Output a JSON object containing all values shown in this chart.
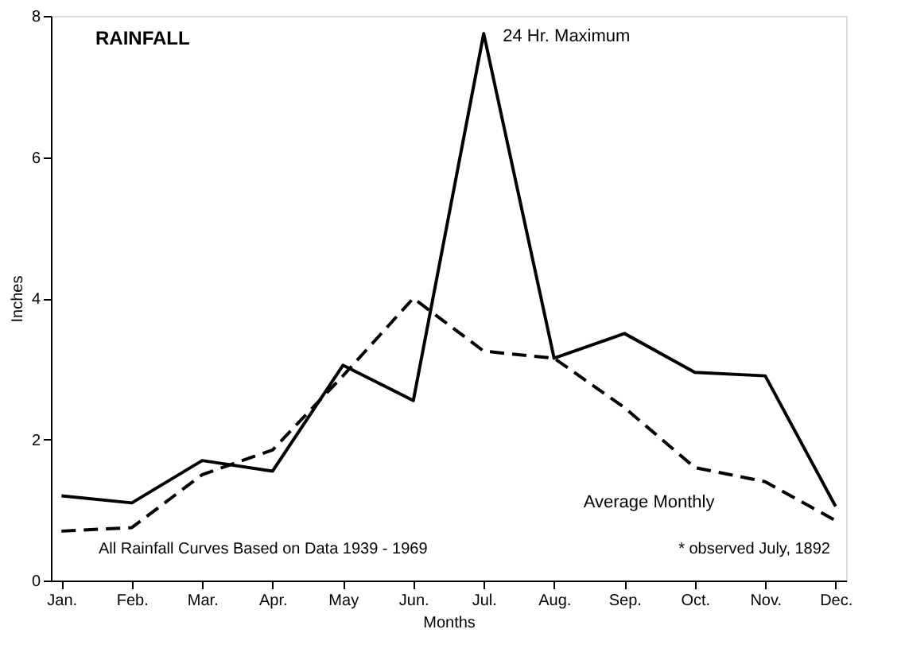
{
  "chart_data": {
    "type": "line",
    "title": "RAINFALL",
    "xlabel": "Months",
    "ylabel": "Inches",
    "categories": [
      "Jan.",
      "Feb.",
      "Mar.",
      "Apr.",
      "May",
      "Jun.",
      "Jul.",
      "Aug.",
      "Sep.",
      "Oct.",
      "Nov.",
      "Dec."
    ],
    "series": [
      {
        "name": "24 Hr. Maximum",
        "color": "#000000",
        "line_style": "solid",
        "values": [
          1.2,
          1.1,
          1.7,
          1.55,
          3.05,
          2.55,
          7.75,
          3.15,
          3.5,
          2.95,
          2.9,
          1.05
        ]
      },
      {
        "name": "Average Monthly",
        "color": "#000000",
        "line_style": "dashed",
        "values": [
          0.7,
          0.75,
          1.5,
          1.85,
          2.9,
          4.0,
          3.25,
          3.15,
          2.45,
          1.6,
          1.4,
          0.85
        ]
      }
    ],
    "ylim": [
      0,
      8
    ],
    "yticks": [
      0,
      2,
      4,
      6,
      8
    ],
    "grid": false,
    "legend": false,
    "marker": "none",
    "annotations": [
      "All Rainfall Curves Based on Data 1939 - 1969",
      "* observed July, 1892"
    ]
  }
}
